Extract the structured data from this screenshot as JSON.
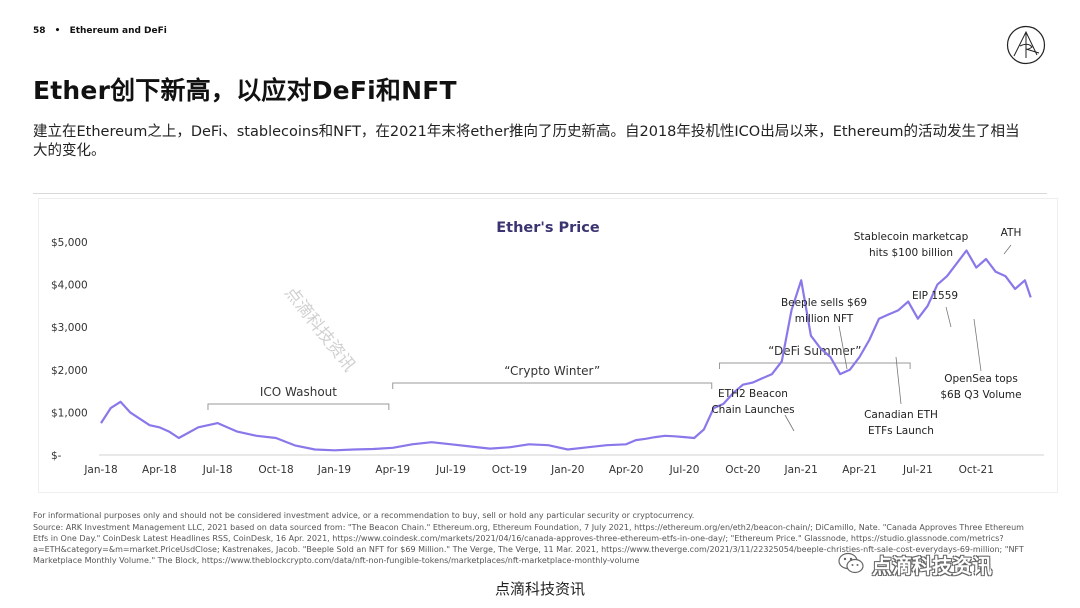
{
  "header": {
    "page_number": "58",
    "separator": "•",
    "section": "Ethereum and DeFi"
  },
  "title": "Ether创下新高，以应对DeFi和NFT",
  "subtitle": "建立在Ethereum之上，DeFi、stablecoins和NFT，在2021年末将ether推向了历史新高。自2018年投机性ICO出局以来，Ethereum的活动发生了相当大的变化。",
  "chart_data": {
    "type": "line",
    "title": "Ether's Price",
    "y_ticks": [
      "$5,000",
      "$4,000",
      "$3,000",
      "$2,000",
      "$1,000",
      "$-"
    ],
    "x_ticks": [
      "Jan-18",
      "Apr-18",
      "Jul-18",
      "Oct-18",
      "Jan-19",
      "Apr-19",
      "Jul-19",
      "Oct-19",
      "Jan-20",
      "Apr-20",
      "Jul-20",
      "Oct-20",
      "Jan-21",
      "Apr-21",
      "Jul-21",
      "Oct-21"
    ],
    "ylim": [
      0,
      5000
    ],
    "grid": false,
    "line_color": "#8a78ea",
    "series": [
      {
        "x": [
          0,
          0.5,
          1,
          1.5,
          2,
          2.5,
          3,
          3.5,
          4,
          5,
          6,
          7,
          8,
          9,
          10,
          11,
          12,
          13,
          14,
          15,
          16,
          17,
          18,
          19,
          20,
          21,
          22,
          23,
          24,
          25,
          26,
          27,
          27.5,
          28,
          28.5,
          29,
          29.5,
          30,
          30.5,
          31,
          31.5,
          32,
          32.5,
          33,
          33.5,
          34,
          34.5,
          35,
          35.5,
          36,
          36.5,
          37,
          37.5,
          38,
          38.5,
          39,
          39.5,
          40,
          40.5,
          41,
          41.5,
          42,
          42.5,
          43,
          43.5,
          44,
          44.5,
          45,
          45.5,
          46,
          46.5,
          47,
          47.5,
          47.8
        ],
        "values": [
          750,
          1100,
          1250,
          1000,
          850,
          700,
          650,
          550,
          400,
          650,
          750,
          550,
          450,
          400,
          220,
          130,
          110,
          130,
          140,
          170,
          250,
          300,
          250,
          200,
          150,
          180,
          250,
          230,
          130,
          180,
          230,
          250,
          350,
          380,
          420,
          450,
          440,
          420,
          400,
          600,
          1100,
          1200,
          1450,
          1650,
          1700,
          1800,
          1900,
          2200,
          3400,
          4100,
          2800,
          2500,
          2300,
          1900,
          2000,
          2300,
          2700,
          3200,
          3300,
          3400,
          3600,
          3200,
          3500,
          4000,
          4200,
          4500,
          4800,
          4400,
          4600,
          4300,
          4200,
          3900,
          4100,
          3700
        ]
      }
    ],
    "annotations": [
      "Stablecoin marketcap hits $100 billion",
      "ATH",
      "Beeple sells $69 million NFT",
      "EIP 1559",
      "OpenSea tops $6B Q3 Volume",
      "Canadian ETH ETFs Launch",
      "ETH2 Beacon Chain Launches"
    ],
    "periods": [
      "ICO Washout",
      "“Crypto Winter”",
      "“DeFi Summer”"
    ]
  },
  "annotation_lines": {
    "stablecoin": [
      "Stablecoin marketcap",
      "hits $100 billion"
    ],
    "ath": [
      "ATH"
    ],
    "beeple": [
      "Beeple sells $69",
      "million NFT"
    ],
    "eip": [
      "EIP 1559"
    ],
    "opensea": [
      "OpenSea tops",
      "$6B Q3 Volume"
    ],
    "canadian": [
      "Canadian ETH",
      "ETFs Launch"
    ],
    "eth2": [
      "ETH2 Beacon",
      "Chain Launches"
    ]
  },
  "footer": {
    "disclaimer": "For informational purposes only and should not be considered investment advice, or a recommendation to buy, sell or hold any particular security or cryptocurrency.",
    "source": "Source: ARK Investment Management LLC, 2021 based on data sourced from: \"The Beacon Chain.\" Ethereum.org, Ethereum Foundation, 7 July 2021, https://ethereum.org/en/eth2/beacon-chain/; DiCamillo, Nate. \"Canada Approves Three Ethereum Etfs in One Day.\" CoinDesk Latest Headlines RSS, CoinDesk, 16 Apr. 2021, https://www.coindesk.com/markets/2021/04/16/canada-approves-three-ethereum-etfs-in-one-day/; \"Ethereum Price.\" Glassnode, https://studio.glassnode.com/metrics?a=ETH&category=&m=market.PriceUsdClose; Kastrenakes, Jacob. \"Beeple Sold an NFT for $69 Million.\" The Verge, The Verge, 11 Mar. 2021, https://www.theverge.com/2021/3/11/22325054/beeple-christies-nft-sale-cost-everydays-69-million; \"NFT Marketplace Monthly Volume.\" The Block, https://www.theblockcrypto.com/data/nft-non-fungible-tokens/marketplaces/nft-marketplace-monthly-volume"
  },
  "watermarks": {
    "diagonal": "点滴科技资讯",
    "bottom": "点滴科技资讯",
    "wechat": "点滴科技资讯"
  }
}
